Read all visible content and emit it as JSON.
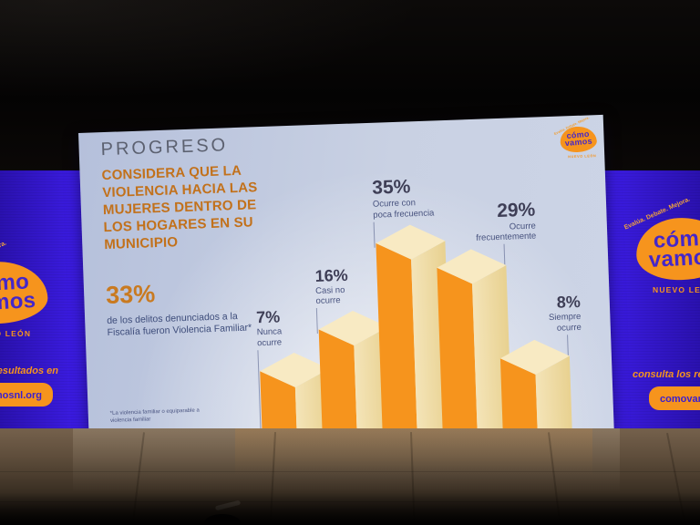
{
  "scene": {
    "description": "Stage photo: projected slide with 3D bar chart between purple LED brand panels",
    "colors": {
      "backdrop_purple": "#3a1bde",
      "brand_orange": "#f6941d",
      "stage_black": "#070605",
      "floor_brown": "#75614c",
      "slide_bg": "#c3cde2",
      "title_orange": "#c2711b"
    }
  },
  "slide": {
    "kicker": "PROGRESO",
    "title_lines": [
      "CONSIDERA QUE LA",
      "VIOLENCIA HACIA LAS",
      "MUJERES DENTRO DE",
      "LOS HOGARES EN SU",
      "MUNICIPIO"
    ],
    "stat_value": "33%",
    "stat_caption_lines": [
      "de los delitos denunciados a la",
      "Fiscalía fueron Violencia Familiar*"
    ],
    "footnote_lines": [
      "*La violencia familiar o equiparable a",
      "violencia familiar"
    ]
  },
  "logo": {
    "line1": "cómo",
    "line2": "vamos",
    "tagline": "Evalúa. Debate. Mejora.",
    "region": "NUEVO LEÓN"
  },
  "panels": {
    "cta_text": "consulta los resultados en",
    "url_text": "comovamosnl.org"
  },
  "chart_data": {
    "type": "bar",
    "style": "isometric 3D columns",
    "title": "Considera que la violencia hacia las mujeres dentro de los hogares en su municipio",
    "unit": "%",
    "categories": [
      "Nunca ocurre",
      "Casi no ocurre",
      "Ocurre con poca frecuencia",
      "Ocurre frecuentemente",
      "Siempre ocurre"
    ],
    "values": [
      7,
      16,
      35,
      29,
      8
    ],
    "value_labels": [
      "7%",
      "16%",
      "35%",
      "29%",
      "8%"
    ],
    "category_label_lines": [
      [
        "Nunca",
        "ocurre"
      ],
      [
        "Casi no",
        "ocurre"
      ],
      [
        "Ocurre con",
        "poca frecuencia"
      ],
      [
        "Ocurre",
        "frecuentemente"
      ],
      [
        "Siempre",
        "ocurre"
      ]
    ],
    "label_align": [
      "left",
      "left",
      "left",
      "right",
      "right"
    ],
    "ylim": [
      0,
      40
    ],
    "grid": false,
    "legend": false,
    "colors": {
      "column_front": "#f6941d",
      "column_side_light": "#f4e4b8",
      "column_side_dark": "#e8d190",
      "column_top": "#f8eac3",
      "value_label": "#3e3e56",
      "category_label": "#47527e",
      "connector_line": "#4a5582"
    }
  }
}
